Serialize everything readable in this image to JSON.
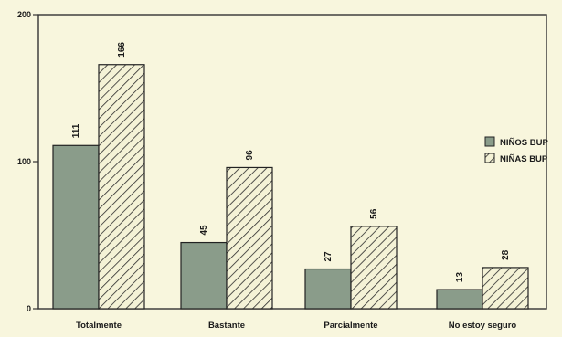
{
  "chart_data": {
    "type": "bar",
    "categories": [
      "Totalmente",
      "Bastante",
      "Parcialmente",
      "No estoy seguro"
    ],
    "series": [
      {
        "name": "NIÑOS BUP",
        "values": [
          111,
          45,
          27,
          13
        ],
        "color": "#8a9c8a",
        "pattern": "solid"
      },
      {
        "name": "NIÑAS BUP",
        "values": [
          166,
          96,
          56,
          28
        ],
        "color": "#f4f2d6",
        "pattern": "hatched"
      }
    ],
    "y_ticks": [
      0,
      100,
      200
    ],
    "ylim": [
      0,
      200
    ],
    "title": "",
    "xlabel": "",
    "ylabel": "",
    "grid": false,
    "legend_position": "right"
  }
}
